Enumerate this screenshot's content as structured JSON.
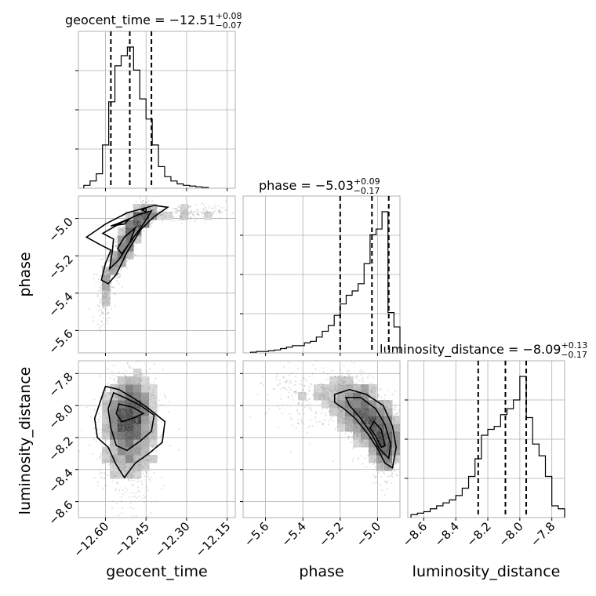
{
  "chart_data": {
    "type": "corner",
    "parameters": [
      {
        "key": "geocent_time",
        "label": "geocent_time",
        "range": [
          -12.7,
          -12.12
        ],
        "ticks": [
          -12.6,
          -12.45,
          -12.3,
          -12.15
        ],
        "tick_labels": [
          "−12.60",
          "−12.45",
          "−12.30",
          "−12.15"
        ],
        "median": -12.51,
        "plus": 0.08,
        "minus": 0.07
      },
      {
        "key": "phase",
        "label": "phase",
        "range": [
          -5.72,
          -4.88
        ],
        "ticks": [
          -5.6,
          -5.4,
          -5.2,
          -5.0
        ],
        "tick_labels": [
          "−5.6",
          "−5.4",
          "−5.2",
          "−5.0"
        ],
        "median": -5.03,
        "plus": 0.09,
        "minus": 0.17
      },
      {
        "key": "luminosity_distance",
        "label": "luminosity_distance",
        "range": [
          -8.7,
          -7.72
        ],
        "ticks": [
          -8.6,
          -8.4,
          -8.2,
          -8.0,
          -7.8
        ],
        "tick_labels": [
          "−8.6",
          "−8.4",
          "−8.2",
          "−8.0",
          "−7.8"
        ],
        "median": -8.09,
        "plus": 0.13,
        "minus": 0.17
      }
    ],
    "titles": {
      "geocent_time": {
        "name": "geocent_time",
        "value": "−12.51",
        "plus": "+0.08",
        "minus": "−0.07"
      },
      "phase": {
        "name": "phase",
        "value": "−5.03",
        "plus": "+0.09",
        "minus": "−0.17"
      },
      "luminosity_distance": {
        "name": "luminosity_distance",
        "value": "−8.09",
        "plus": "+0.13",
        "minus": "−0.17"
      }
    },
    "histograms": {
      "geocent_time": {
        "bin_edges": [
          -12.68,
          -12.657,
          -12.634,
          -12.611,
          -12.588,
          -12.565,
          -12.542,
          -12.519,
          -12.496,
          -12.473,
          -12.45,
          -12.427,
          -12.404,
          -12.381,
          -12.358,
          -12.335,
          -12.312,
          -12.289,
          -12.266,
          -12.243,
          -12.22
        ],
        "counts": [
          0.02,
          0.05,
          0.1,
          0.3,
          0.6,
          0.85,
          0.92,
          0.98,
          0.82,
          0.62,
          0.48,
          0.3,
          0.15,
          0.08,
          0.05,
          0.03,
          0.02,
          0.015,
          0.01,
          0.005
        ],
        "quantiles": [
          -12.58,
          -12.51,
          -12.43
        ]
      },
      "phase": {
        "bin_edges": [
          -5.68,
          -5.648,
          -5.616,
          -5.584,
          -5.552,
          -5.52,
          -5.488,
          -5.456,
          -5.424,
          -5.392,
          -5.36,
          -5.328,
          -5.296,
          -5.264,
          -5.232,
          -5.2,
          -5.168,
          -5.136,
          -5.104,
          -5.072,
          -5.04,
          -5.008,
          -4.976,
          -4.944,
          -4.912,
          -4.88
        ],
        "counts": [
          0.005,
          0.01,
          0.01,
          0.015,
          0.02,
          0.03,
          0.04,
          0.05,
          0.05,
          0.07,
          0.08,
          0.11,
          0.15,
          0.19,
          0.26,
          0.34,
          0.4,
          0.43,
          0.48,
          0.62,
          0.82,
          0.86,
          0.98,
          0.28,
          0.18
        ],
        "quantiles": [
          -5.2,
          -5.03,
          -4.94
        ]
      },
      "luminosity_distance": {
        "bin_edges": [
          -8.68,
          -8.64,
          -8.6,
          -8.56,
          -8.52,
          -8.48,
          -8.44,
          -8.4,
          -8.36,
          -8.32,
          -8.28,
          -8.24,
          -8.2,
          -8.16,
          -8.12,
          -8.08,
          -8.04,
          -8.0,
          -7.96,
          -7.92,
          -7.88,
          -7.84,
          -7.8,
          -7.76,
          -7.72
        ],
        "counts": [
          0.02,
          0.03,
          0.04,
          0.06,
          0.08,
          0.1,
          0.12,
          0.15,
          0.2,
          0.28,
          0.4,
          0.56,
          0.6,
          0.62,
          0.7,
          0.74,
          0.8,
          0.96,
          0.68,
          0.5,
          0.42,
          0.28,
          0.08,
          0.06
        ],
        "quantiles": [
          -8.26,
          -8.09,
          -7.96
        ]
      }
    },
    "scatter_2d": [
      {
        "x": "geocent_time",
        "y": "phase",
        "blobs": [
          {
            "cx": -12.52,
            "cy": -5.12,
            "sx": 0.035,
            "sy": 0.1,
            "rho": 0.85,
            "n": 1600
          },
          {
            "cx": -12.46,
            "cy": -5.0,
            "sx": 0.025,
            "sy": 0.03,
            "rho": 0.6,
            "n": 700
          },
          {
            "cx": -12.6,
            "cy": -5.38,
            "sx": 0.02,
            "sy": 0.1,
            "rho": 0.4,
            "n": 400
          },
          {
            "cx": -12.3,
            "cy": -4.97,
            "sx": 0.08,
            "sy": 0.02,
            "rho": 0.3,
            "n": 350
          }
        ],
        "contours": [
          [
            [
              -12.67,
              -5.1
            ],
            [
              -12.6,
              -5.03
            ],
            [
              -12.52,
              -4.97
            ],
            [
              -12.42,
              -4.93
            ],
            [
              -12.37,
              -4.94
            ],
            [
              -12.42,
              -4.99
            ],
            [
              -12.47,
              -5.06
            ],
            [
              -12.52,
              -5.18
            ],
            [
              -12.56,
              -5.3
            ],
            [
              -12.59,
              -5.35
            ],
            [
              -12.615,
              -5.33
            ],
            [
              -12.6,
              -5.24
            ],
            [
              -12.58,
              -5.17
            ],
            [
              -12.62,
              -5.14
            ]
          ],
          [
            [
              -12.61,
              -5.08
            ],
            [
              -12.55,
              -5.03
            ],
            [
              -12.48,
              -4.98
            ],
            [
              -12.43,
              -4.96
            ],
            [
              -12.46,
              -5.03
            ],
            [
              -12.51,
              -5.13
            ],
            [
              -12.55,
              -5.22
            ],
            [
              -12.585,
              -5.27
            ],
            [
              -12.575,
              -5.18
            ],
            [
              -12.57,
              -5.11
            ]
          ],
          [
            [
              -12.56,
              -5.03
            ],
            [
              -12.51,
              -5.0
            ],
            [
              -12.53,
              -5.03
            ],
            [
              -12.58,
              -5.04
            ]
          ],
          [
            [
              -12.465,
              -4.955
            ],
            [
              -12.45,
              -4.945
            ],
            [
              -12.45,
              -4.965
            ]
          ],
          [
            [
              -12.53,
              -5.1
            ],
            [
              -12.49,
              -5.05
            ],
            [
              -12.51,
              -5.13
            ],
            [
              -12.54,
              -5.19
            ],
            [
              -12.555,
              -5.16
            ]
          ]
        ]
      },
      {
        "x": "geocent_time",
        "y": "luminosity_distance",
        "blobs": [
          {
            "cx": -12.51,
            "cy": -8.07,
            "sx": 0.045,
            "sy": 0.14,
            "rho": 0.1,
            "n": 2200
          },
          {
            "cx": -12.52,
            "cy": -8.25,
            "sx": 0.06,
            "sy": 0.2,
            "rho": 0.0,
            "n": 1000
          }
        ],
        "contours": [
          [
            [
              -12.6,
              -7.88
            ],
            [
              -12.55,
              -7.9
            ],
            [
              -12.49,
              -7.96
            ],
            [
              -12.44,
              -8.02
            ],
            [
              -12.38,
              -8.1
            ],
            [
              -12.39,
              -8.23
            ],
            [
              -12.44,
              -8.3
            ],
            [
              -12.49,
              -8.36
            ],
            [
              -12.53,
              -8.45
            ],
            [
              -12.56,
              -8.37
            ],
            [
              -12.59,
              -8.26
            ],
            [
              -12.63,
              -8.2
            ],
            [
              -12.64,
              -8.08
            ],
            [
              -12.62,
              -7.98
            ]
          ],
          [
            [
              -12.57,
              -7.92
            ],
            [
              -12.53,
              -7.95
            ],
            [
              -12.47,
              -8.0
            ],
            [
              -12.42,
              -8.06
            ],
            [
              -12.43,
              -8.16
            ],
            [
              -12.47,
              -8.22
            ],
            [
              -12.52,
              -8.28
            ],
            [
              -12.56,
              -8.25
            ],
            [
              -12.58,
              -8.14
            ],
            [
              -12.59,
              -8.02
            ]
          ],
          [
            [
              -12.55,
              -7.99
            ],
            [
              -12.5,
              -8.01
            ],
            [
              -12.46,
              -8.05
            ],
            [
              -12.5,
              -8.08
            ],
            [
              -12.54,
              -8.1
            ],
            [
              -12.56,
              -8.05
            ]
          ]
        ]
      },
      {
        "x": "phase",
        "y": "luminosity_distance",
        "blobs": [
          {
            "cx": -5.05,
            "cy": -8.08,
            "sx": 0.09,
            "sy": 0.12,
            "rho": -0.55,
            "n": 2400
          },
          {
            "cx": -4.96,
            "cy": -8.25,
            "sx": 0.04,
            "sy": 0.1,
            "rho": 0.0,
            "n": 800
          },
          {
            "cx": -5.3,
            "cy": -7.95,
            "sx": 0.15,
            "sy": 0.1,
            "rho": -0.2,
            "n": 600
          }
        ],
        "contours": [
          [
            [
              -5.23,
              -7.93
            ],
            [
              -5.15,
              -7.9
            ],
            [
              -5.06,
              -7.93
            ],
            [
              -4.97,
              -8.0
            ],
            [
              -4.92,
              -8.13
            ],
            [
              -4.9,
              -8.26
            ],
            [
              -4.92,
              -8.39
            ],
            [
              -4.96,
              -8.36
            ],
            [
              -5.0,
              -8.27
            ],
            [
              -5.05,
              -8.18
            ],
            [
              -5.12,
              -8.08
            ],
            [
              -5.18,
              -8.02
            ],
            [
              -5.23,
              -7.98
            ]
          ],
          [
            [
              -5.17,
              -7.95
            ],
            [
              -5.09,
              -7.95
            ],
            [
              -5.01,
              -8.02
            ],
            [
              -4.96,
              -8.12
            ],
            [
              -4.93,
              -8.24
            ],
            [
              -4.94,
              -8.33
            ],
            [
              -4.99,
              -8.27
            ],
            [
              -5.03,
              -8.18
            ],
            [
              -5.09,
              -8.08
            ],
            [
              -5.15,
              -8.0
            ]
          ],
          [
            [
              -5.02,
              -8.1
            ],
            [
              -4.98,
              -8.15
            ],
            [
              -4.96,
              -8.25
            ],
            [
              -4.98,
              -8.26
            ],
            [
              -5.01,
              -8.19
            ],
            [
              -5.04,
              -8.14
            ]
          ]
        ]
      }
    ],
    "grid": true,
    "colors": {
      "line": "#000000",
      "grid": "#b0b0b0",
      "samples": "#8c8c8c"
    }
  }
}
